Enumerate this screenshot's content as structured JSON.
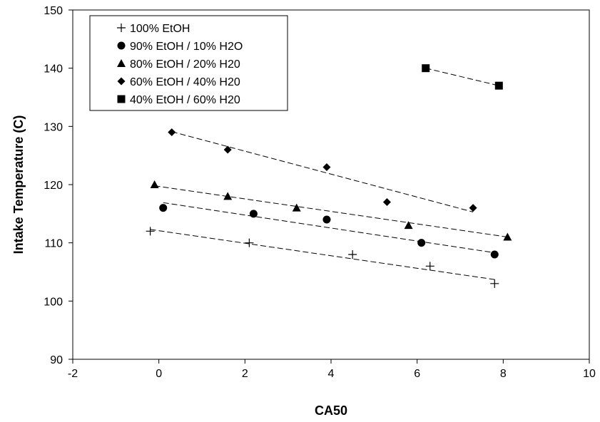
{
  "chart_data": {
    "type": "scatter",
    "title": "",
    "xlabel": "CA50",
    "ylabel": "Intake Temperature (C)",
    "xlim": [
      -2,
      10
    ],
    "ylim": [
      90,
      150
    ],
    "xticks": [
      -2,
      0,
      2,
      4,
      6,
      8,
      10
    ],
    "yticks": [
      90,
      100,
      110,
      120,
      130,
      140,
      150
    ],
    "grid": false,
    "legend_position": "top-left",
    "trendlines": "dashed linear fit per series",
    "series": [
      {
        "name": "100% EtOH",
        "marker": "plus",
        "x": [
          -0.2,
          2.1,
          4.5,
          6.3,
          7.8
        ],
        "y": [
          112,
          110,
          108,
          106,
          103
        ],
        "trend": {
          "x": [
            -0.2,
            7.8
          ],
          "y": [
            112.3,
            103.7
          ]
        }
      },
      {
        "name": "90% EtOH / 10% H2O",
        "marker": "circle",
        "x": [
          0.1,
          2.2,
          3.9,
          6.1,
          7.8
        ],
        "y": [
          116,
          115,
          114,
          110,
          108
        ],
        "trend": {
          "x": [
            0.1,
            7.8
          ],
          "y": [
            116.9,
            108.3
          ]
        }
      },
      {
        "name": "80% EtOH / 20% H20",
        "marker": "triangle",
        "x": [
          -0.1,
          1.6,
          3.2,
          5.8,
          8.1
        ],
        "y": [
          120,
          118,
          116,
          113,
          111
        ],
        "trend": {
          "x": [
            -0.1,
            8.1
          ],
          "y": [
            119.8,
            111.0
          ]
        }
      },
      {
        "name": "60% EtOH / 40% H20",
        "marker": "diamond",
        "x": [
          0.3,
          1.6,
          3.9,
          5.3,
          7.3
        ],
        "y": [
          129,
          126,
          123,
          117,
          116
        ],
        "trend": {
          "x": [
            0.3,
            7.3
          ],
          "y": [
            129.1,
            115.3
          ]
        }
      },
      {
        "name": "40% EtOH / 60% H20",
        "marker": "square",
        "x": [
          6.2,
          7.9
        ],
        "y": [
          140,
          137
        ],
        "trend": {
          "x": [
            6.2,
            7.9
          ],
          "y": [
            140.0,
            137.0
          ]
        }
      }
    ]
  }
}
